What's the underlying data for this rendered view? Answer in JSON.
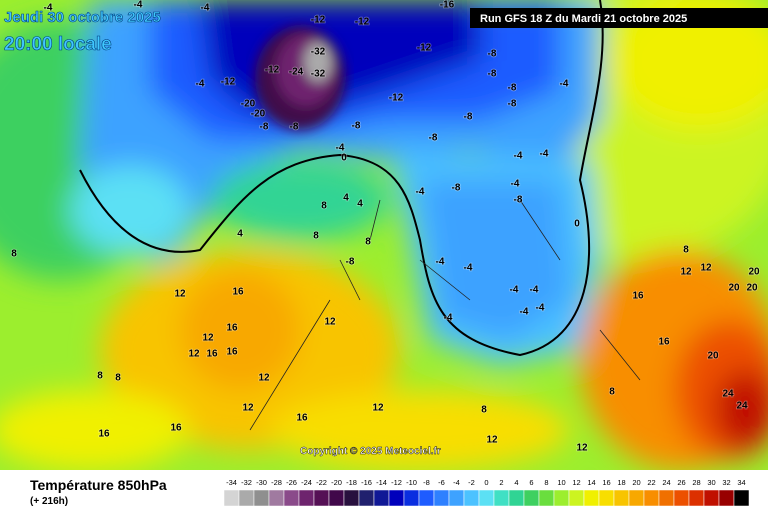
{
  "header": {
    "date": "Jeudi 30 octobre 2025",
    "time": "20:00 locale",
    "run": "Run GFS 18 Z du Mardi 21 octobre 2025"
  },
  "copyright": "Copyright © 2025 Meteociel.fr",
  "footer": {
    "title": "Température 850hPa",
    "lead": "(+ 216h)"
  },
  "legend": {
    "values": [
      -34,
      -32,
      -30,
      -28,
      -26,
      -24,
      -22,
      -20,
      -18,
      -16,
      -14,
      -12,
      -10,
      -8,
      -6,
      -4,
      -2,
      0,
      2,
      4,
      6,
      8,
      10,
      12,
      14,
      16,
      18,
      20,
      22,
      24,
      26,
      28,
      30,
      32,
      34
    ],
    "colors": [
      "#d4d4d4",
      "#aaaaaa",
      "#8f8f8f",
      "#a07aa0",
      "#8a4a8a",
      "#6e246e",
      "#551055",
      "#40084a",
      "#28103e",
      "#20206e",
      "#101896",
      "#0000bc",
      "#0a2ee0",
      "#1e5cff",
      "#2e80ff",
      "#3ea2ff",
      "#4cc2ff",
      "#5ce0f4",
      "#40e0c4",
      "#30d494",
      "#3ed060",
      "#6ade3e",
      "#9cee2e",
      "#ccf420",
      "#f0f000",
      "#f8de00",
      "#f8c400",
      "#f8a800",
      "#f88e00",
      "#f07000",
      "#ec5000",
      "#dc3000",
      "#c01000",
      "#980000",
      "#000000"
    ]
  },
  "contour_labels": [
    -4,
    -4,
    -4,
    -12,
    -12,
    -16,
    -12,
    -32,
    -12,
    -24,
    -32,
    -12,
    -4,
    -20,
    -20,
    -8,
    -8,
    -12,
    -8,
    -8,
    -8,
    -8,
    -8,
    -8,
    -4,
    -8,
    -4,
    0,
    -4,
    -4,
    -8,
    -4,
    -4,
    -8,
    0,
    8,
    4,
    4,
    4,
    8,
    8,
    -8,
    -4,
    -4,
    -4,
    -4,
    -4,
    -4,
    -4,
    8,
    12,
    16,
    16,
    12,
    12,
    16,
    16,
    12,
    8,
    8,
    12,
    12,
    12,
    16,
    16,
    16,
    8,
    12,
    8,
    12,
    16,
    16,
    20,
    24,
    24,
    12,
    12,
    8,
    20,
    20,
    20
  ]
}
